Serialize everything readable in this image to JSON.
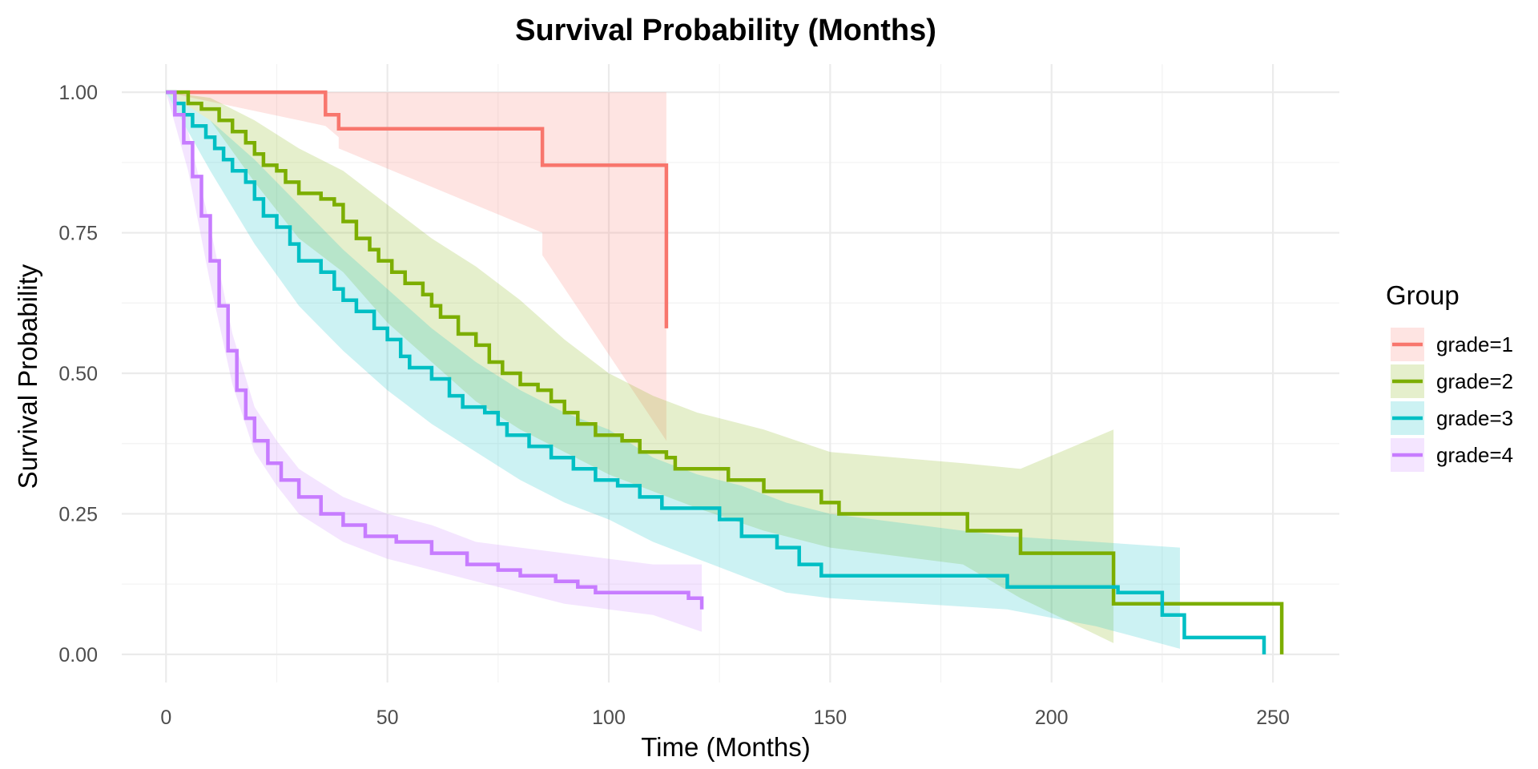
{
  "chart_data": {
    "type": "line",
    "title": "Survival Probability (Months)",
    "xlabel": "Time (Months)",
    "ylabel": "Survival Probability",
    "xlim": [
      -10,
      265
    ],
    "ylim": [
      -0.05,
      1.05
    ],
    "x_ticks": [
      0,
      50,
      100,
      150,
      200,
      250
    ],
    "x_tick_labels": [
      "0",
      "50",
      "100",
      "150",
      "200",
      "250"
    ],
    "y_ticks": [
      0,
      0.25,
      0.5,
      0.75,
      1.0
    ],
    "y_tick_labels": [
      "0.00",
      "0.25",
      "0.50",
      "0.75",
      "1.00"
    ],
    "grid": true,
    "legend": {
      "title": "Group",
      "position": "right"
    },
    "series": [
      {
        "name": "grade=1",
        "color": "#F8766D",
        "points": [
          [
            0,
            1.0
          ],
          [
            36,
            0.98
          ],
          [
            36,
            0.96
          ],
          [
            39,
            0.96
          ],
          [
            39,
            0.935
          ],
          [
            85,
            0.935
          ],
          [
            85,
            0.87
          ],
          [
            113,
            0.87
          ],
          [
            113,
            0.58
          ]
        ],
        "ci_upper": [
          [
            0,
            1.0
          ],
          [
            113,
            1.0
          ]
        ],
        "ci_lower": [
          [
            0,
            1.0
          ],
          [
            36,
            0.94
          ],
          [
            39,
            0.92
          ],
          [
            39,
            0.9
          ],
          [
            85,
            0.75
          ],
          [
            85,
            0.71
          ],
          [
            113,
            0.38
          ]
        ]
      },
      {
        "name": "grade=2",
        "color": "#7CAE00",
        "points": [
          [
            0,
            1.0
          ],
          [
            5,
            0.98
          ],
          [
            8,
            0.97
          ],
          [
            12,
            0.95
          ],
          [
            15,
            0.93
          ],
          [
            18,
            0.91
          ],
          [
            20,
            0.89
          ],
          [
            22,
            0.87
          ],
          [
            25,
            0.86
          ],
          [
            27,
            0.84
          ],
          [
            30,
            0.82
          ],
          [
            35,
            0.81
          ],
          [
            38,
            0.8
          ],
          [
            40,
            0.77
          ],
          [
            43,
            0.74
          ],
          [
            46,
            0.72
          ],
          [
            48,
            0.7
          ],
          [
            51,
            0.68
          ],
          [
            54,
            0.66
          ],
          [
            58,
            0.64
          ],
          [
            60,
            0.62
          ],
          [
            62,
            0.6
          ],
          [
            66,
            0.57
          ],
          [
            70,
            0.55
          ],
          [
            73,
            0.52
          ],
          [
            76,
            0.5
          ],
          [
            80,
            0.48
          ],
          [
            84,
            0.47
          ],
          [
            87,
            0.45
          ],
          [
            90,
            0.43
          ],
          [
            93,
            0.41
          ],
          [
            97,
            0.39
          ],
          [
            103,
            0.38
          ],
          [
            107,
            0.36
          ],
          [
            113,
            0.35
          ],
          [
            115,
            0.33
          ],
          [
            127,
            0.31
          ],
          [
            135,
            0.29
          ],
          [
            148,
            0.27
          ],
          [
            152,
            0.25
          ],
          [
            181,
            0.25
          ],
          [
            181,
            0.22
          ],
          [
            193,
            0.22
          ],
          [
            193,
            0.18
          ],
          [
            214,
            0.18
          ],
          [
            214,
            0.09
          ],
          [
            252,
            0.09
          ],
          [
            252,
            0.0
          ]
        ],
        "ci_upper": [
          [
            0,
            1.0
          ],
          [
            10,
            0.99
          ],
          [
            20,
            0.95
          ],
          [
            30,
            0.9
          ],
          [
            40,
            0.86
          ],
          [
            50,
            0.8
          ],
          [
            60,
            0.74
          ],
          [
            70,
            0.69
          ],
          [
            80,
            0.63
          ],
          [
            90,
            0.56
          ],
          [
            100,
            0.5
          ],
          [
            110,
            0.46
          ],
          [
            120,
            0.43
          ],
          [
            135,
            0.4
          ],
          [
            150,
            0.36
          ],
          [
            180,
            0.34
          ],
          [
            193,
            0.33
          ],
          [
            214,
            0.4
          ]
        ],
        "ci_lower": [
          [
            0,
            1.0
          ],
          [
            10,
            0.95
          ],
          [
            20,
            0.84
          ],
          [
            30,
            0.74
          ],
          [
            40,
            0.68
          ],
          [
            50,
            0.59
          ],
          [
            60,
            0.52
          ],
          [
            70,
            0.45
          ],
          [
            80,
            0.4
          ],
          [
            90,
            0.36
          ],
          [
            100,
            0.32
          ],
          [
            110,
            0.29
          ],
          [
            120,
            0.26
          ],
          [
            135,
            0.22
          ],
          [
            150,
            0.19
          ],
          [
            180,
            0.16
          ],
          [
            193,
            0.1
          ],
          [
            214,
            0.02
          ]
        ]
      },
      {
        "name": "grade=3",
        "color": "#00BFC4",
        "points": [
          [
            0,
            1.0
          ],
          [
            2,
            0.98
          ],
          [
            4,
            0.96
          ],
          [
            6,
            0.94
          ],
          [
            9,
            0.92
          ],
          [
            11,
            0.9
          ],
          [
            13,
            0.88
          ],
          [
            15,
            0.86
          ],
          [
            18,
            0.84
          ],
          [
            20,
            0.81
          ],
          [
            22,
            0.78
          ],
          [
            25,
            0.76
          ],
          [
            28,
            0.73
          ],
          [
            30,
            0.7
          ],
          [
            35,
            0.68
          ],
          [
            38,
            0.65
          ],
          [
            40,
            0.63
          ],
          [
            43,
            0.61
          ],
          [
            47,
            0.58
          ],
          [
            50,
            0.56
          ],
          [
            53,
            0.53
          ],
          [
            55,
            0.51
          ],
          [
            60,
            0.49
          ],
          [
            64,
            0.46
          ],
          [
            67,
            0.44
          ],
          [
            72,
            0.43
          ],
          [
            75,
            0.41
          ],
          [
            77,
            0.39
          ],
          [
            82,
            0.37
          ],
          [
            87,
            0.35
          ],
          [
            92,
            0.33
          ],
          [
            97,
            0.31
          ],
          [
            102,
            0.3
          ],
          [
            107,
            0.28
          ],
          [
            112,
            0.26
          ],
          [
            117,
            0.26
          ],
          [
            125,
            0.24
          ],
          [
            130,
            0.21
          ],
          [
            138,
            0.19
          ],
          [
            143,
            0.16
          ],
          [
            148,
            0.14
          ],
          [
            185,
            0.14
          ],
          [
            190,
            0.12
          ],
          [
            210,
            0.12
          ],
          [
            215,
            0.11
          ],
          [
            225,
            0.11
          ],
          [
            225,
            0.07
          ],
          [
            230,
            0.07
          ],
          [
            230,
            0.03
          ],
          [
            248,
            0.03
          ],
          [
            248,
            0.0
          ]
        ],
        "ci_upper": [
          [
            0,
            1.0
          ],
          [
            10,
            0.95
          ],
          [
            20,
            0.88
          ],
          [
            30,
            0.8
          ],
          [
            40,
            0.72
          ],
          [
            50,
            0.65
          ],
          [
            60,
            0.58
          ],
          [
            70,
            0.52
          ],
          [
            80,
            0.47
          ],
          [
            90,
            0.43
          ],
          [
            100,
            0.4
          ],
          [
            110,
            0.35
          ],
          [
            120,
            0.32
          ],
          [
            130,
            0.3
          ],
          [
            140,
            0.27
          ],
          [
            150,
            0.25
          ],
          [
            170,
            0.23
          ],
          [
            190,
            0.21
          ],
          [
            210,
            0.2
          ],
          [
            229,
            0.19
          ]
        ],
        "ci_lower": [
          [
            0,
            1.0
          ],
          [
            10,
            0.86
          ],
          [
            20,
            0.73
          ],
          [
            30,
            0.62
          ],
          [
            40,
            0.54
          ],
          [
            50,
            0.47
          ],
          [
            60,
            0.41
          ],
          [
            70,
            0.36
          ],
          [
            80,
            0.31
          ],
          [
            90,
            0.27
          ],
          [
            100,
            0.24
          ],
          [
            110,
            0.2
          ],
          [
            120,
            0.17
          ],
          [
            130,
            0.14
          ],
          [
            140,
            0.11
          ],
          [
            150,
            0.1
          ],
          [
            170,
            0.09
          ],
          [
            190,
            0.08
          ],
          [
            210,
            0.05
          ],
          [
            229,
            0.01
          ]
        ]
      },
      {
        "name": "grade=4",
        "color": "#C77CFF",
        "points": [
          [
            0,
            1.0
          ],
          [
            2,
            0.96
          ],
          [
            4,
            0.91
          ],
          [
            6,
            0.85
          ],
          [
            8,
            0.78
          ],
          [
            10,
            0.7
          ],
          [
            12,
            0.62
          ],
          [
            14,
            0.54
          ],
          [
            16,
            0.47
          ],
          [
            18,
            0.42
          ],
          [
            20,
            0.38
          ],
          [
            23,
            0.34
          ],
          [
            26,
            0.31
          ],
          [
            30,
            0.28
          ],
          [
            35,
            0.25
          ],
          [
            40,
            0.23
          ],
          [
            45,
            0.21
          ],
          [
            52,
            0.2
          ],
          [
            60,
            0.18
          ],
          [
            68,
            0.16
          ],
          [
            75,
            0.15
          ],
          [
            80,
            0.14
          ],
          [
            88,
            0.13
          ],
          [
            93,
            0.12
          ],
          [
            97,
            0.11
          ],
          [
            118,
            0.11
          ],
          [
            118,
            0.1
          ],
          [
            121,
            0.1
          ],
          [
            121,
            0.08
          ]
        ],
        "ci_upper": [
          [
            0,
            1.0
          ],
          [
            5,
            0.93
          ],
          [
            10,
            0.76
          ],
          [
            15,
            0.57
          ],
          [
            20,
            0.44
          ],
          [
            25,
            0.38
          ],
          [
            30,
            0.33
          ],
          [
            40,
            0.28
          ],
          [
            50,
            0.25
          ],
          [
            60,
            0.23
          ],
          [
            70,
            0.2
          ],
          [
            80,
            0.19
          ],
          [
            90,
            0.18
          ],
          [
            100,
            0.17
          ],
          [
            110,
            0.16
          ],
          [
            121,
            0.16
          ]
        ],
        "ci_lower": [
          [
            0,
            1.0
          ],
          [
            5,
            0.86
          ],
          [
            10,
            0.66
          ],
          [
            15,
            0.48
          ],
          [
            20,
            0.36
          ],
          [
            25,
            0.3
          ],
          [
            30,
            0.25
          ],
          [
            40,
            0.2
          ],
          [
            50,
            0.17
          ],
          [
            60,
            0.15
          ],
          [
            70,
            0.13
          ],
          [
            80,
            0.11
          ],
          [
            90,
            0.09
          ],
          [
            100,
            0.08
          ],
          [
            110,
            0.07
          ],
          [
            121,
            0.04
          ]
        ]
      }
    ]
  }
}
